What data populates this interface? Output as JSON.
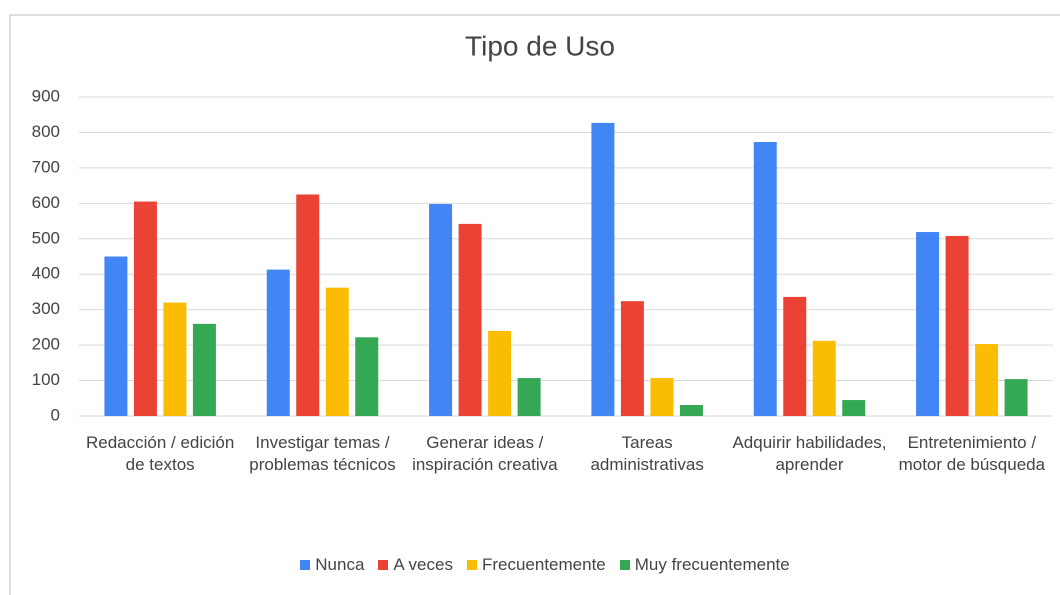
{
  "chart_data": {
    "type": "bar",
    "title": "Tipo de Uso",
    "categories": [
      "Redacción / edición de textos",
      "Investigar temas / problemas técnicos",
      "Generar ideas / inspiración creativa",
      "Tareas administrativas",
      "Adquirir habilidades, aprender",
      "Entretenimiento / motor de búsqueda"
    ],
    "series": [
      {
        "name": "Nunca",
        "color": "#4285f4",
        "values": [
          450,
          413,
          598,
          827,
          773,
          519
        ]
      },
      {
        "name": "A veces",
        "color": "#ea4335",
        "values": [
          605,
          625,
          542,
          324,
          336,
          508
        ]
      },
      {
        "name": "Frecuentemente",
        "color": "#fbbc04",
        "values": [
          320,
          362,
          240,
          107,
          212,
          203
        ]
      },
      {
        "name": "Muy frecuentemente",
        "color": "#34a853",
        "values": [
          260,
          222,
          107,
          31,
          45,
          104
        ]
      }
    ],
    "ylim": [
      0,
      900
    ],
    "yticks": [
      0,
      100,
      200,
      300,
      400,
      500,
      600,
      700,
      800,
      900
    ],
    "grid": true,
    "legend": "bottom"
  }
}
